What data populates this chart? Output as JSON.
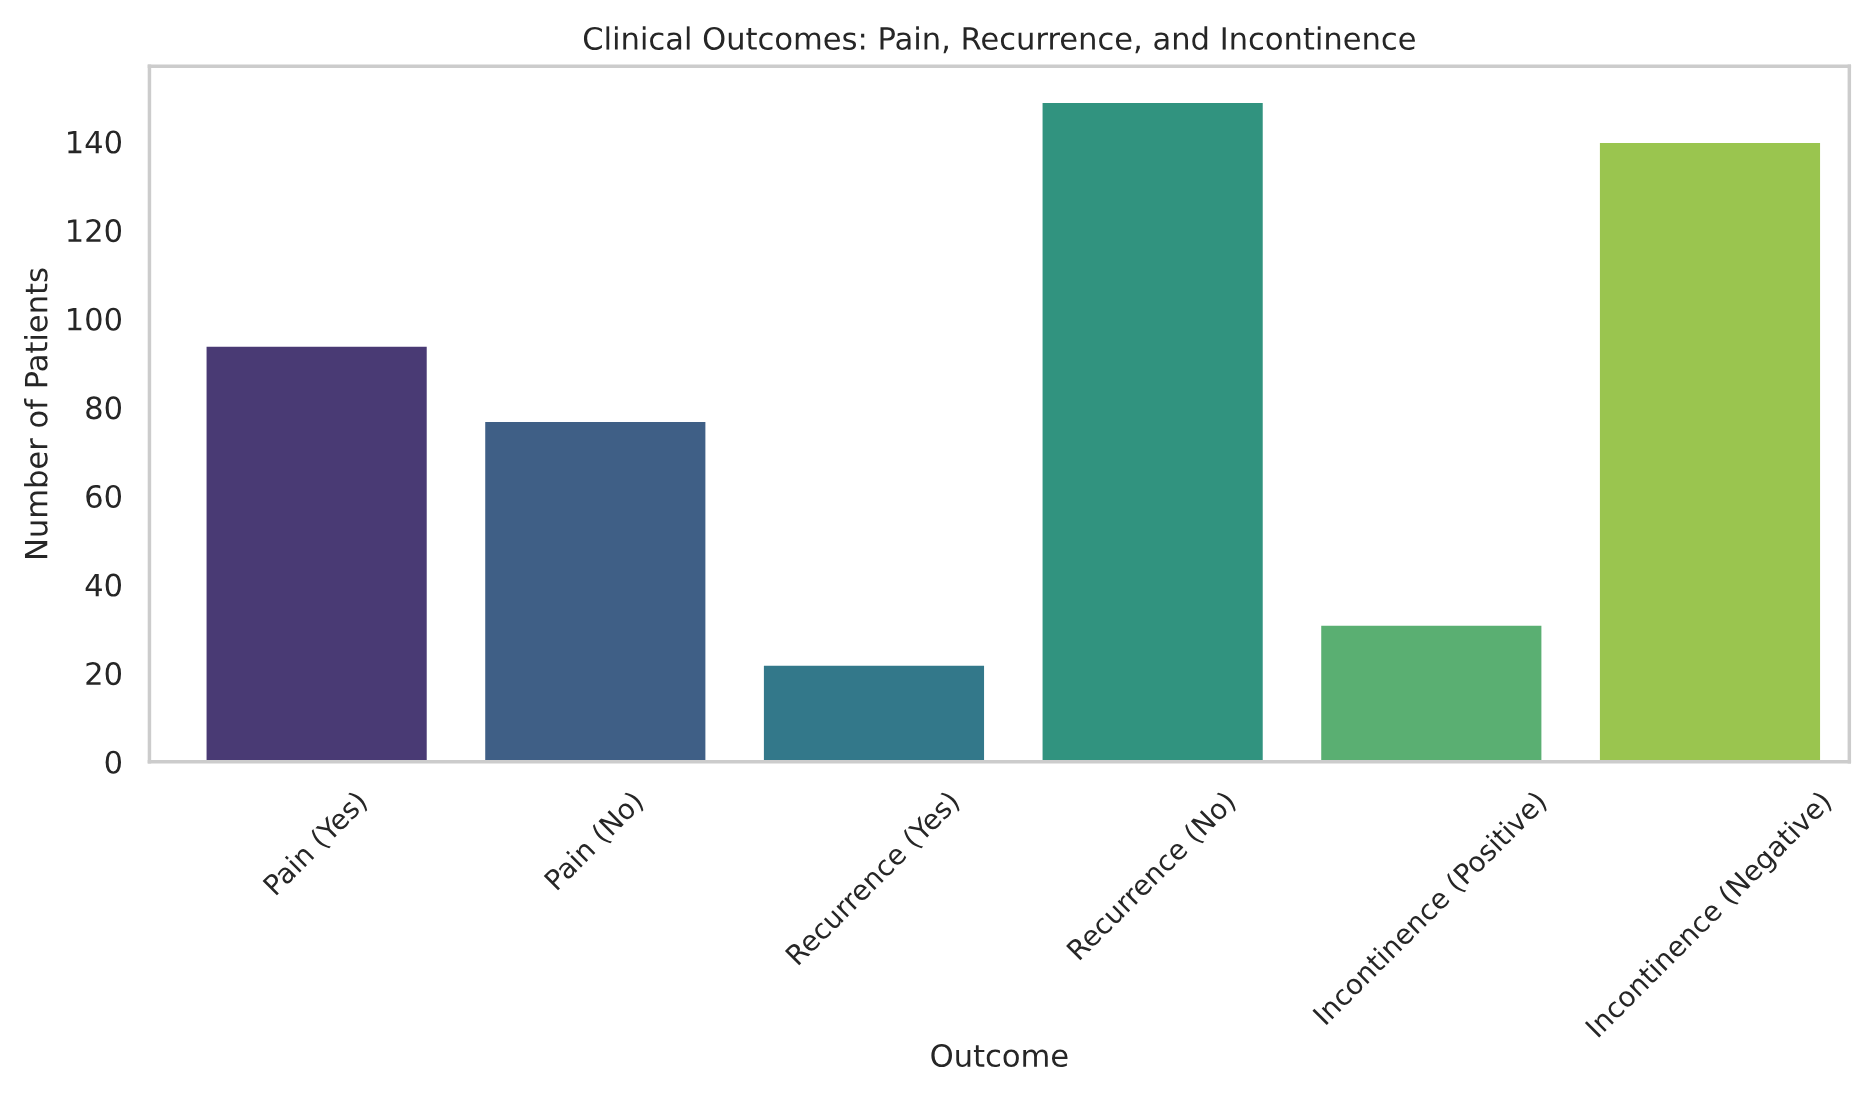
{
  "chart_data": {
    "type": "bar",
    "title": "Clinical Outcomes: Pain, Recurrence, and Incontinence",
    "xlabel": "Outcome",
    "ylabel": "Number of Patients",
    "categories": [
      "Pain (Yes)",
      "Pain (No)",
      "Recurrence (Yes)",
      "Recurrence (No)",
      "Incontinence (Positive)",
      "Incontinence (Negative)"
    ],
    "values": [
      94,
      77,
      22,
      149,
      31,
      140
    ],
    "colors": [
      "#493a74",
      "#3f5f86",
      "#33788a",
      "#31937f",
      "#5aaf72",
      "#9ac54f"
    ],
    "ylim": [
      0,
      157
    ],
    "yticks": [
      0,
      20,
      40,
      60,
      80,
      100,
      120,
      140
    ],
    "grid": false,
    "legend": false
  }
}
